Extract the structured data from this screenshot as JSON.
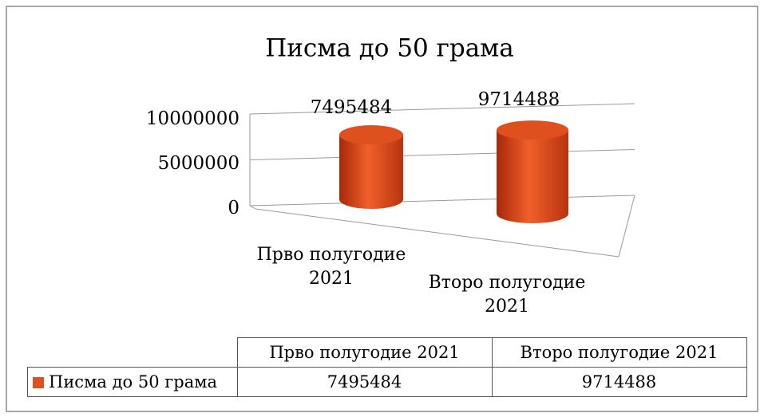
{
  "chart_data": {
    "type": "bar3d",
    "title": "Писма до 50 грама",
    "categories": [
      "Прво полугодие 2021",
      "Второ полугодие 2021"
    ],
    "series": [
      {
        "name": "Писма до 50 грама",
        "color": "#e0501e",
        "values": [
          7495484,
          9714488
        ]
      }
    ],
    "ylim": [
      0,
      10000000
    ],
    "yticks": [
      0,
      5000000,
      10000000
    ],
    "grid": true
  }
}
